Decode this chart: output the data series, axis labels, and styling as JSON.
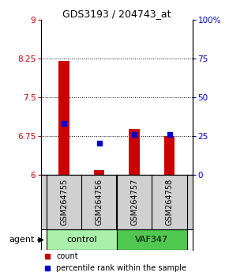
{
  "title": "GDS3193 / 204743_at",
  "samples": [
    "GSM264755",
    "GSM264756",
    "GSM264757",
    "GSM264758"
  ],
  "red_values": [
    8.2,
    6.08,
    6.88,
    6.75
  ],
  "blue_values": [
    33.0,
    20.0,
    26.0,
    26.0
  ],
  "ylim_left": [
    6,
    9
  ],
  "ylim_right": [
    0,
    100
  ],
  "yticks_left": [
    6,
    6.75,
    7.5,
    8.25,
    9
  ],
  "yticks_right": [
    0,
    25,
    50,
    75,
    100
  ],
  "ytick_labels_left": [
    "6",
    "6.75",
    "7.5",
    "8.25",
    "9"
  ],
  "ytick_labels_right": [
    "0",
    "25",
    "50",
    "75",
    "100%"
  ],
  "hlines": [
    6.75,
    7.5,
    8.25
  ],
  "bar_width": 0.12,
  "sample_bg": "#d0d0d0",
  "control_color": "#aaf0aa",
  "vaf_color": "#50c850",
  "legend_red": "count",
  "legend_blue": "percentile rank within the sample",
  "agent_label": "agent",
  "left_color": "#cc0000",
  "right_color": "#0000cc",
  "title_fontsize": 9,
  "tick_fontsize": 7.5,
  "sample_fontsize": 7,
  "group_fontsize": 8,
  "legend_fontsize": 7
}
